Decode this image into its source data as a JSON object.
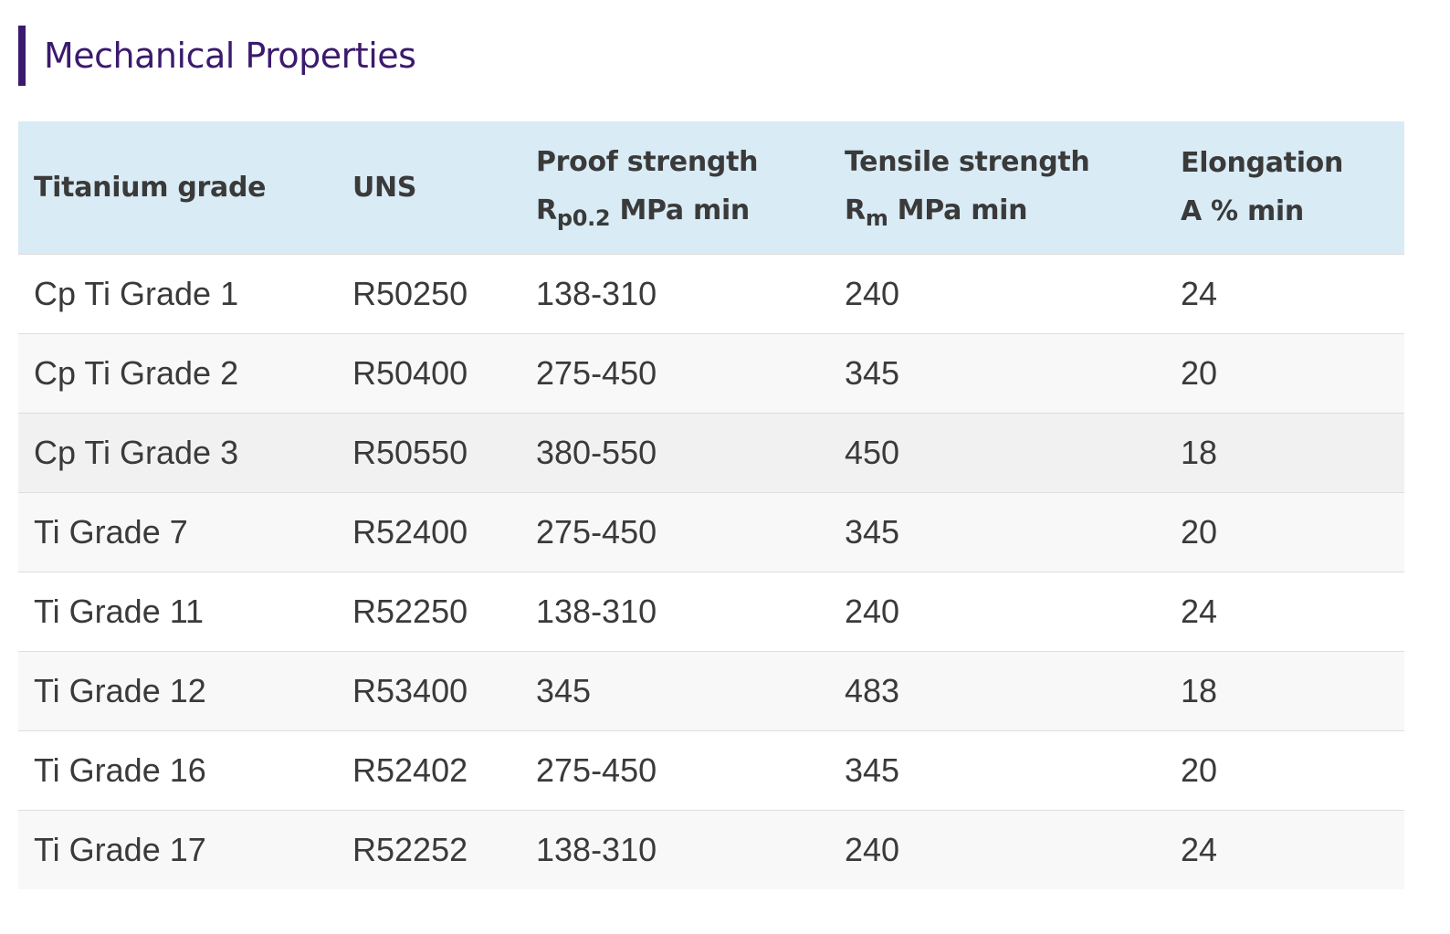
{
  "heading": "Mechanical Properties",
  "colors": {
    "heading": "#3b1a6e",
    "accent_bar": "#3b1a6e",
    "header_bg": "#d9ebf5",
    "row_alt": "#f8f8f8",
    "row_highlight": "#f1f1f1"
  },
  "table": {
    "headers": {
      "grade": "Titanium grade",
      "uns": "UNS",
      "proof_line1": "Proof strength",
      "proof_symbol": "R",
      "proof_sub": "p0.2",
      "proof_unit": " MPa min",
      "tensile_line1": "Tensile strength",
      "tensile_symbol": "R",
      "tensile_sub": "m",
      "tensile_unit": " MPa min",
      "elong_line1": "Elongation",
      "elong_line2": "A % min"
    },
    "rows": [
      {
        "grade": "Cp Ti Grade 1",
        "uns": "R50250",
        "proof": "138-310",
        "tensile": "240",
        "elongation": "24"
      },
      {
        "grade": "Cp Ti Grade 2",
        "uns": "R50400",
        "proof": "275-450",
        "tensile": "345",
        "elongation": "20"
      },
      {
        "grade": "Cp Ti Grade 3",
        "uns": "R50550",
        "proof": "380-550",
        "tensile": "450",
        "elongation": "18"
      },
      {
        "grade": "Ti Grade 7",
        "uns": "R52400",
        "proof": "275-450",
        "tensile": "345",
        "elongation": "20"
      },
      {
        "grade": "Ti Grade 11",
        "uns": "R52250",
        "proof": "138-310",
        "tensile": "240",
        "elongation": "24"
      },
      {
        "grade": "Ti Grade 12",
        "uns": "R53400",
        "proof": "345",
        "tensile": "483",
        "elongation": "18"
      },
      {
        "grade": "Ti Grade 16",
        "uns": "R52402",
        "proof": "275-450",
        "tensile": "345",
        "elongation": "20"
      },
      {
        "grade": "Ti Grade 17",
        "uns": "R52252",
        "proof": "138-310",
        "tensile": "240",
        "elongation": "24"
      }
    ]
  }
}
